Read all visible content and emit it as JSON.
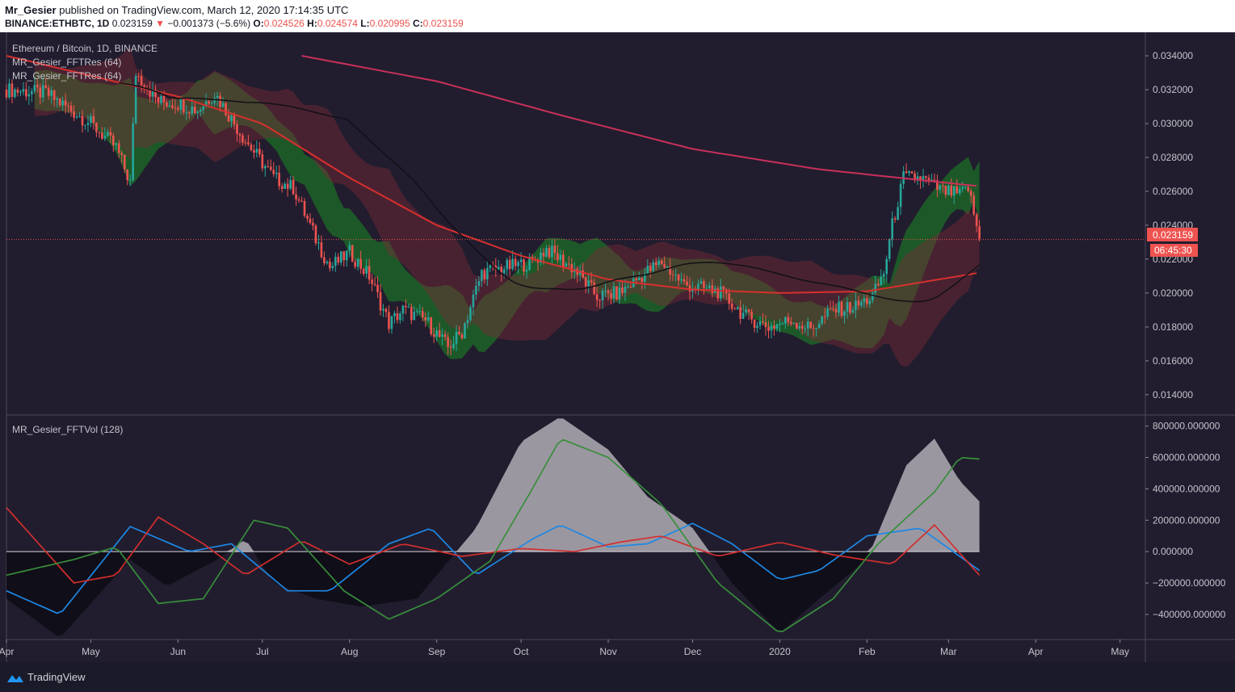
{
  "header": {
    "author": "Mr_Gesier",
    "published": "published on TradingView.com, March 12, 2020 17:14:35 UTC",
    "symbol": "BINANCE:ETHBTC, 1D",
    "last": "0.023159",
    "change": "−0.001373 (−5.6%)",
    "o_label": "O:",
    "o_value": "0.024526",
    "h_label": "H:",
    "h_value": "0.024574",
    "l_label": "L:",
    "l_value": "0.020995",
    "c_label": "C:",
    "c_value": "0.023159"
  },
  "legend": {
    "series_title": "Ethereum / Bitcoin, 1D, BINANCE",
    "indicator1": "MR_Gesier_FFTRes (64)",
    "indicator2": "MR_Gesier_FFTRes (64)",
    "volume_indicator": "MR_Gesier_FFTVol (128)"
  },
  "price_badge": {
    "value": "0.023159",
    "countdown": "06:45:30"
  },
  "footer": {
    "brand": "TradingView"
  },
  "colors": {
    "background": "#211d2e",
    "up": "#26a69a",
    "down": "#ef5350",
    "green_band": "#1b8a24",
    "red_band": "#7a2a35",
    "ma_red": "#d8302e",
    "ma_pink": "#c9305a",
    "osc_blue": "#1e88e5",
    "osc_red": "#d32f2f",
    "osc_green": "#388e3c",
    "vol_fill": "#a9a5ad"
  },
  "chart_data": [
    {
      "type": "candlestick",
      "title": "Ethereum / Bitcoin, 1D, BINANCE",
      "x_ticks": [
        "Apr",
        "May",
        "Jun",
        "Jul",
        "Aug",
        "Sep",
        "Oct",
        "Nov",
        "Dec",
        "2020",
        "Feb",
        "Mar",
        "Apr",
        "May"
      ],
      "y_ticks": [
        "0.034000",
        "0.032000",
        "0.030000",
        "0.028000",
        "0.026000",
        "0.024000",
        "0.022000",
        "0.020000",
        "0.018000",
        "0.016000",
        "0.014000"
      ],
      "ylim": [
        0.0128,
        0.0351
      ],
      "close_path": [
        [
          "2019-04-01",
          0.032
        ],
        [
          "2019-04-15",
          0.0318
        ],
        [
          "2019-05-01",
          0.03
        ],
        [
          "2019-05-10",
          0.0286
        ],
        [
          "2019-05-15",
          0.0265
        ],
        [
          "2019-05-17",
          0.033
        ],
        [
          "2019-05-25",
          0.0313
        ],
        [
          "2019-06-01",
          0.0312
        ],
        [
          "2019-06-08",
          0.0308
        ],
        [
          "2019-06-14",
          0.0318
        ],
        [
          "2019-06-25",
          0.029
        ],
        [
          "2019-07-05",
          0.0268
        ],
        [
          "2019-07-12",
          0.0262
        ],
        [
          "2019-07-20",
          0.0232
        ],
        [
          "2019-07-25",
          0.0215
        ],
        [
          "2019-08-01",
          0.0224
        ],
        [
          "2019-08-08",
          0.021
        ],
        [
          "2019-08-15",
          0.0182
        ],
        [
          "2019-08-20",
          0.019
        ],
        [
          "2019-08-28",
          0.0184
        ],
        [
          "2019-09-05",
          0.0168
        ],
        [
          "2019-09-10",
          0.0177
        ],
        [
          "2019-09-17",
          0.0212
        ],
        [
          "2019-09-25",
          0.0215
        ],
        [
          "2019-10-05",
          0.0218
        ],
        [
          "2019-10-10",
          0.0226
        ],
        [
          "2019-10-20",
          0.0214
        ],
        [
          "2019-10-28",
          0.0198
        ],
        [
          "2019-11-05",
          0.02
        ],
        [
          "2019-11-15",
          0.0213
        ],
        [
          "2019-11-20",
          0.0218
        ],
        [
          "2019-11-28",
          0.0205
        ],
        [
          "2019-12-10",
          0.0201
        ],
        [
          "2019-12-20",
          0.0186
        ],
        [
          "2019-12-28",
          0.018
        ],
        [
          "2020-01-05",
          0.0184
        ],
        [
          "2020-01-12",
          0.0179
        ],
        [
          "2020-01-20",
          0.019
        ],
        [
          "2020-01-28",
          0.0192
        ],
        [
          "2020-02-03",
          0.0198
        ],
        [
          "2020-02-07",
          0.0212
        ],
        [
          "2020-02-10",
          0.024
        ],
        [
          "2020-02-14",
          0.0268
        ],
        [
          "2020-02-20",
          0.0268
        ],
        [
          "2020-02-28",
          0.026
        ],
        [
          "2020-03-05",
          0.0258
        ],
        [
          "2020-03-08",
          0.0262
        ],
        [
          "2020-03-12",
          0.023159
        ]
      ],
      "ma_red_path": [
        [
          "2019-04-01",
          0.034
        ],
        [
          "2019-06-01",
          0.0316
        ],
        [
          "2019-07-01",
          0.03
        ],
        [
          "2019-08-01",
          0.0268
        ],
        [
          "2019-09-01",
          0.024
        ],
        [
          "2019-10-01",
          0.0222
        ],
        [
          "2019-11-01",
          0.0208
        ],
        [
          "2019-12-01",
          0.0202
        ],
        [
          "2020-01-01",
          0.02
        ],
        [
          "2020-02-01",
          0.0201
        ],
        [
          "2020-03-12",
          0.0212
        ]
      ],
      "ma_pink_path": [
        [
          "2019-07-15",
          0.034
        ],
        [
          "2019-09-01",
          0.0325
        ],
        [
          "2019-10-15",
          0.0305
        ],
        [
          "2019-12-01",
          0.0285
        ],
        [
          "2020-01-15",
          0.0273
        ],
        [
          "2020-03-12",
          0.0263
        ]
      ],
      "last_price": 0.023159
    },
    {
      "type": "area+line",
      "title": "MR_Gesier_FFTVol (128)",
      "y_ticks": [
        "800000.000000",
        "600000.000000",
        "400000.000000",
        "200000.000000",
        "0.000000",
        "−200000.000000",
        "−400000.000000"
      ],
      "ylim": [
        -560000,
        860000
      ],
      "volume_area": [
        [
          "2019-04-01",
          -300000
        ],
        [
          "2019-04-20",
          -550000
        ],
        [
          "2019-05-05",
          -250000
        ],
        [
          "2019-05-15",
          -50000
        ],
        [
          "2019-05-28",
          -220000
        ],
        [
          "2019-06-15",
          -50000
        ],
        [
          "2019-06-25",
          80000
        ],
        [
          "2019-07-05",
          -200000
        ],
        [
          "2019-07-20",
          -300000
        ],
        [
          "2019-08-05",
          -350000
        ],
        [
          "2019-08-25",
          -300000
        ],
        [
          "2019-09-15",
          150000
        ],
        [
          "2019-10-01",
          700000
        ],
        [
          "2019-10-15",
          860000
        ],
        [
          "2019-11-01",
          650000
        ],
        [
          "2019-11-15",
          350000
        ],
        [
          "2019-12-01",
          150000
        ],
        [
          "2019-12-15",
          -200000
        ],
        [
          "2020-01-01",
          -520000
        ],
        [
          "2020-01-15",
          -300000
        ],
        [
          "2020-02-01",
          -50000
        ],
        [
          "2020-02-15",
          550000
        ],
        [
          "2020-02-25",
          720000
        ],
        [
          "2020-03-05",
          450000
        ],
        [
          "2020-03-12",
          320000
        ]
      ],
      "series": [
        {
          "color": "#1e88e5",
          "values": [
            [
              "2019-04-01",
              -250000
            ],
            [
              "2019-04-20",
              -400000
            ],
            [
              "2019-05-15",
              160000
            ],
            [
              "2019-06-05",
              0
            ],
            [
              "2019-06-20",
              50000
            ],
            [
              "2019-07-10",
              -250000
            ],
            [
              "2019-07-25",
              -250000
            ],
            [
              "2019-08-15",
              50000
            ],
            [
              "2019-08-30",
              150000
            ],
            [
              "2019-09-15",
              -150000
            ],
            [
              "2019-10-05",
              80000
            ],
            [
              "2019-10-15",
              170000
            ],
            [
              "2019-11-01",
              30000
            ],
            [
              "2019-11-15",
              50000
            ],
            [
              "2019-12-01",
              180000
            ],
            [
              "2019-12-15",
              50000
            ],
            [
              "2020-01-01",
              -180000
            ],
            [
              "2020-01-15",
              -120000
            ],
            [
              "2020-02-01",
              100000
            ],
            [
              "2020-02-20",
              150000
            ],
            [
              "2020-03-12",
              -120000
            ]
          ]
        },
        {
          "color": "#d32f2f",
          "values": [
            [
              "2019-04-01",
              280000
            ],
            [
              "2019-04-25",
              -200000
            ],
            [
              "2019-05-10",
              -150000
            ],
            [
              "2019-05-25",
              220000
            ],
            [
              "2019-06-10",
              50000
            ],
            [
              "2019-06-25",
              -150000
            ],
            [
              "2019-07-15",
              70000
            ],
            [
              "2019-08-01",
              -80000
            ],
            [
              "2019-08-20",
              50000
            ],
            [
              "2019-09-10",
              -30000
            ],
            [
              "2019-10-01",
              20000
            ],
            [
              "2019-10-20",
              0
            ],
            [
              "2019-11-05",
              60000
            ],
            [
              "2019-11-20",
              100000
            ],
            [
              "2019-12-10",
              -30000
            ],
            [
              "2020-01-01",
              60000
            ],
            [
              "2020-01-20",
              -20000
            ],
            [
              "2020-02-10",
              -80000
            ],
            [
              "2020-02-25",
              170000
            ],
            [
              "2020-03-12",
              -150000
            ]
          ]
        },
        {
          "color": "#388e3c",
          "values": [
            [
              "2019-04-01",
              -150000
            ],
            [
              "2019-04-25",
              -50000
            ],
            [
              "2019-05-10",
              30000
            ],
            [
              "2019-05-25",
              -330000
            ],
            [
              "2019-06-10",
              -300000
            ],
            [
              "2019-06-28",
              200000
            ],
            [
              "2019-07-10",
              150000
            ],
            [
              "2019-07-30",
              -250000
            ],
            [
              "2019-08-15",
              -430000
            ],
            [
              "2019-09-01",
              -300000
            ],
            [
              "2019-09-20",
              -60000
            ],
            [
              "2019-10-05",
              400000
            ],
            [
              "2019-10-15",
              720000
            ],
            [
              "2019-11-01",
              600000
            ],
            [
              "2019-11-20",
              300000
            ],
            [
              "2019-12-10",
              -200000
            ],
            [
              "2020-01-01",
              -520000
            ],
            [
              "2020-01-20",
              -300000
            ],
            [
              "2020-02-05",
              50000
            ],
            [
              "2020-02-25",
              380000
            ],
            [
              "2020-03-05",
              600000
            ],
            [
              "2020-03-12",
              590000
            ]
          ]
        }
      ]
    }
  ]
}
